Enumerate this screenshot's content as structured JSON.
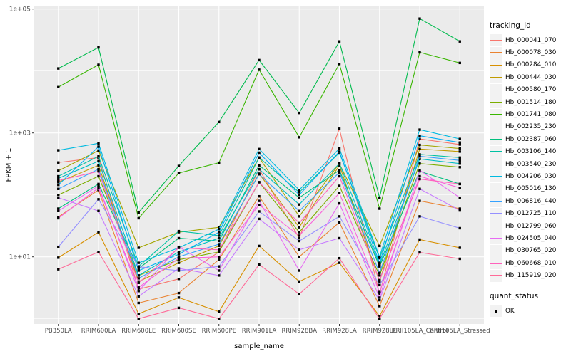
{
  "chart_data": {
    "type": "line",
    "xlabel": "sample_name",
    "ylabel": "FPKM + 1",
    "y_scale": "log10",
    "ylim": [
      1,
      130000
    ],
    "grid": true,
    "panel_bg": "#EBEBEB",
    "grid_color": "#FFFFFF",
    "tick_text_color": "#4D4D4D",
    "point_color": "#000000",
    "y_ticks": [
      {
        "label": "1e+05",
        "value": 100000
      },
      {
        "label": "1e+03",
        "value": 1000
      },
      {
        "label": "1e+01",
        "value": 10
      }
    ],
    "y_minor_gridlines": [
      1,
      100,
      10000
    ],
    "categories": [
      "PB350LA",
      "RRIM600LA",
      "RRIM600LE",
      "RRIM600SE",
      "RRIM600PE",
      "RRIM901LA",
      "RRIM928BA",
      "RRIM928LA",
      "RRIM928LE",
      "RRII105LA_Control",
      "RRII105LA_Stressed"
    ],
    "legend_title": "tracking_id",
    "legend_position": "right",
    "series": [
      {
        "name": "Hb_000041_070",
        "color": "#F8766D",
        "values": [
          333,
          400,
          3.0,
          4.4,
          12,
          260,
          20,
          1170,
          2.5,
          800,
          650
        ]
      },
      {
        "name": "Hb_000078_030",
        "color": "#EA8331",
        "values": [
          44,
          120,
          1.8,
          2.6,
          9,
          95,
          10,
          36,
          1.6,
          80,
          60
        ]
      },
      {
        "name": "Hb_000284_010",
        "color": "#D89000",
        "values": [
          9.7,
          25,
          1.2,
          2.2,
          1.3,
          15,
          4,
          8,
          1.1,
          19,
          14
        ]
      },
      {
        "name": "Hb_000444_030",
        "color": "#C09B00",
        "values": [
          160,
          300,
          4.0,
          8,
          15,
          220,
          30,
          300,
          4.0,
          550,
          500
        ]
      },
      {
        "name": "Hb_000580_170",
        "color": "#A3A500",
        "values": [
          245,
          520,
          14,
          25,
          30,
          400,
          45,
          320,
          15,
          640,
          560
        ]
      },
      {
        "name": "Hb_001514_180",
        "color": "#7CAE00",
        "values": [
          100,
          200,
          5.0,
          9,
          12,
          160,
          25,
          140,
          5.0,
          320,
          280
        ]
      },
      {
        "name": "Hb_001741_080",
        "color": "#39B600",
        "values": [
          5500,
          12600,
          42,
          225,
          330,
          10500,
          850,
          13000,
          60,
          20000,
          13500
        ]
      },
      {
        "name": "Hb_002235_230",
        "color": "#00BB4E",
        "values": [
          11000,
          24000,
          52,
          293,
          1500,
          15000,
          2100,
          30000,
          90,
          70000,
          30000
        ]
      },
      {
        "name": "Hb_002387_060",
        "color": "#00BF7D",
        "values": [
          60,
          150,
          6.5,
          20,
          18,
          300,
          90,
          250,
          7.0,
          240,
          150
        ]
      },
      {
        "name": "Hb_003106_140",
        "color": "#00C1A3",
        "values": [
          200,
          420,
          7.0,
          26,
          22,
          400,
          110,
          480,
          9.5,
          450,
          400
        ]
      },
      {
        "name": "Hb_003540_230",
        "color": "#00BFC4",
        "values": [
          185,
          350,
          5.0,
          12,
          20,
          260,
          70,
          320,
          7.5,
          380,
          320
        ]
      },
      {
        "name": "Hb_004206_030",
        "color": "#00BAE0",
        "values": [
          525,
          680,
          8.0,
          14,
          28,
          550,
          120,
          560,
          10,
          1130,
          800
        ]
      },
      {
        "name": "Hb_005016_130",
        "color": "#00B0F6",
        "values": [
          145,
          600,
          6.0,
          11,
          25,
          480,
          100,
          500,
          8.0,
          900,
          700
        ]
      },
      {
        "name": "Hb_006816_440",
        "color": "#35A2FF",
        "values": [
          125,
          260,
          4.5,
          10,
          16,
          215,
          55,
          230,
          5.5,
          420,
          360
        ]
      },
      {
        "name": "Hb_012725_110",
        "color": "#9590FF",
        "values": [
          14.5,
          85,
          6.9,
          6.0,
          7.0,
          54,
          18,
          45,
          3.5,
          45,
          29
        ]
      },
      {
        "name": "Hb_012799_060",
        "color": "#C77CFF",
        "values": [
          90,
          55,
          2.3,
          6.5,
          5.0,
          41,
          13,
          20,
          2.0,
          125,
          56
        ]
      },
      {
        "name": "Hb_024505_040",
        "color": "#E76BF3",
        "values": [
          55,
          140,
          2.8,
          14.5,
          6.0,
          80,
          6,
          73,
          2.2,
          250,
          90
        ]
      },
      {
        "name": "Hb_030765_020",
        "color": "#FA62DB",
        "values": [
          42,
          130,
          3.2,
          9.5,
          10,
          69,
          22,
          107,
          2.7,
          200,
          130
        ]
      },
      {
        "name": "Hb_060668_010",
        "color": "#FF62BC",
        "values": [
          170,
          240,
          3.8,
          14,
          13,
          160,
          35,
          200,
          4.2,
          180,
          150
        ]
      },
      {
        "name": "Hb_115919_020",
        "color": "#FF6A98",
        "values": [
          6.3,
          12,
          1.0,
          1.5,
          1.0,
          7.5,
          2.5,
          9.5,
          1.0,
          11.8,
          9.3
        ]
      }
    ],
    "quant_legend": {
      "title": "quant_status",
      "entries": [
        "OK"
      ]
    }
  }
}
